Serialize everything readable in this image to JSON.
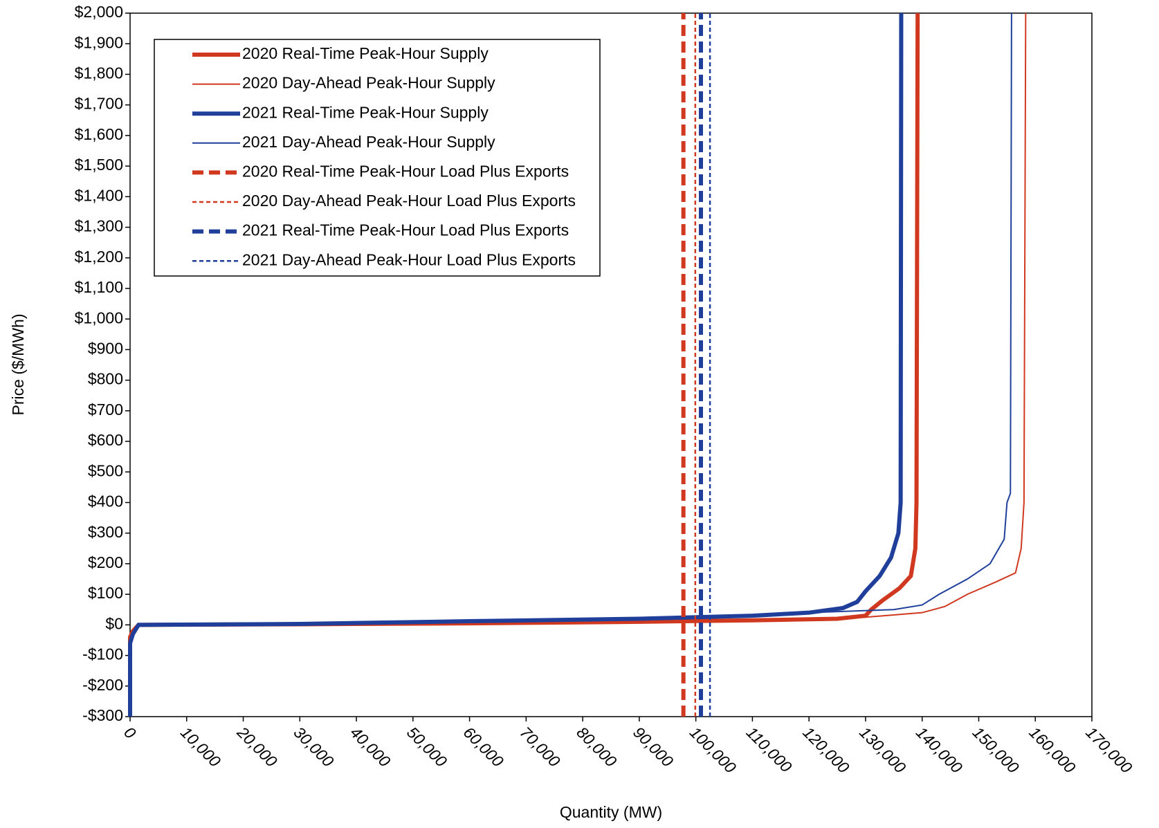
{
  "chart_data": {
    "type": "line",
    "xlabel": "Quantity (MW)",
    "ylabel": "Price ($/MWh)",
    "xlim": [
      0,
      170000
    ],
    "ylim": [
      -300,
      2000
    ],
    "xticks": [
      0,
      {
        "value": 10000,
        "label": "10,000"
      },
      {
        "value": 20000,
        "label": "20,000"
      },
      {
        "value": 30000,
        "label": "30,000"
      },
      {
        "value": 40000,
        "label": "40,000"
      },
      {
        "value": 50000,
        "label": "50,000"
      },
      {
        "value": 60000,
        "label": "60,000"
      },
      {
        "value": 70000,
        "label": "70,000"
      },
      {
        "value": 80000,
        "label": "80,000"
      },
      {
        "value": 90000,
        "label": "90,000"
      },
      {
        "value": 100000,
        "label": "100,000"
      },
      {
        "value": 110000,
        "label": "110,000"
      },
      {
        "value": 120000,
        "label": "120,000"
      },
      {
        "value": 130000,
        "label": "130,000"
      },
      {
        "value": 140000,
        "label": "140,000"
      },
      {
        "value": 150000,
        "label": "150,000"
      },
      {
        "value": 160000,
        "label": "160,000"
      },
      {
        "value": 170000,
        "label": "170,000"
      }
    ],
    "yticks": [
      {
        "value": -300,
        "label": "-$300"
      },
      {
        "value": -200,
        "label": "-$200"
      },
      {
        "value": -100,
        "label": "-$100"
      },
      {
        "value": 0,
        "label": "$0"
      },
      {
        "value": 100,
        "label": "$100"
      },
      {
        "value": 200,
        "label": "$200"
      },
      {
        "value": 300,
        "label": "$300"
      },
      {
        "value": 400,
        "label": "$400"
      },
      {
        "value": 500,
        "label": "$500"
      },
      {
        "value": 600,
        "label": "$600"
      },
      {
        "value": 700,
        "label": "$700"
      },
      {
        "value": 800,
        "label": "$800"
      },
      {
        "value": 900,
        "label": "$900"
      },
      {
        "value": 1000,
        "label": "$1,000"
      },
      {
        "value": 1100,
        "label": "$1,100"
      },
      {
        "value": 1200,
        "label": "$1,200"
      },
      {
        "value": 1300,
        "label": "$1,300"
      },
      {
        "value": 1400,
        "label": "$1,400"
      },
      {
        "value": 1500,
        "label": "$1,500"
      },
      {
        "value": 1600,
        "label": "$1,600"
      },
      {
        "value": 1700,
        "label": "$1,700"
      },
      {
        "value": 1800,
        "label": "$1,800"
      },
      {
        "value": 1900,
        "label": "$1,900"
      },
      {
        "value": 2000,
        "label": "$2,000"
      }
    ],
    "grid": false,
    "legend": "upper-left",
    "series": [
      {
        "name": "2020 Real-Time Peak-Hour Supply",
        "color": "#d0391f",
        "width": 6,
        "dash": "solid",
        "x": [
          0,
          0,
          500,
          1500,
          30000,
          60000,
          90000,
          110000,
          125000,
          130000,
          131000,
          133000,
          136000,
          138000,
          138800,
          139000,
          139200
        ],
        "values": [
          -300,
          -40,
          -20,
          0,
          2,
          5,
          10,
          15,
          20,
          30,
          50,
          80,
          120,
          160,
          250,
          400,
          2000
        ]
      },
      {
        "name": "2020 Day-Ahead Peak-Hour Supply",
        "color": "#d0391f",
        "width": 2,
        "dash": "solid",
        "x": [
          0,
          0,
          1500,
          60000,
          100000,
          130000,
          140000,
          144000,
          148000,
          153000,
          156500,
          157500,
          158000,
          158300
        ],
        "values": [
          -300,
          -40,
          0,
          5,
          12,
          25,
          40,
          60,
          100,
          140,
          170,
          250,
          400,
          2000
        ]
      },
      {
        "name": "2021 Real-Time Peak-Hour Supply",
        "color": "#1f3f9a",
        "width": 6,
        "dash": "solid",
        "x": [
          0,
          0,
          500,
          1500,
          30000,
          60000,
          90000,
          110000,
          120000,
          126000,
          128500,
          130000,
          132500,
          134500,
          135800,
          136200,
          136300
        ],
        "values": [
          -300,
          -60,
          -30,
          0,
          3,
          12,
          20,
          30,
          40,
          55,
          75,
          110,
          160,
          220,
          300,
          400,
          2000
        ]
      },
      {
        "name": "2021 Day-Ahead Peak-Hour Supply",
        "color": "#1f3f9a",
        "width": 2,
        "dash": "solid",
        "x": [
          0,
          0,
          1500,
          60000,
          100000,
          120000,
          135000,
          140000,
          143000,
          148000,
          152000,
          154500,
          155000,
          155600,
          155800
        ],
        "values": [
          -300,
          -50,
          0,
          8,
          22,
          40,
          50,
          65,
          100,
          150,
          200,
          280,
          400,
          430,
          2000
        ]
      },
      {
        "name": "2020 Real-Time Peak-Hour Load Plus Exports",
        "color": "#d0391f",
        "width": 6,
        "dash": "dashed",
        "x": [
          97800,
          97800
        ],
        "values": [
          -300,
          2000
        ]
      },
      {
        "name": "2020 Day-Ahead Peak-Hour Load Plus Exports",
        "color": "#d0391f",
        "width": 2.5,
        "dash": "dashed",
        "x": [
          99900,
          99900
        ],
        "values": [
          -300,
          2000
        ]
      },
      {
        "name": "2021 Real-Time Peak-Hour Load Plus Exports",
        "color": "#1f3f9a",
        "width": 6,
        "dash": "dashed",
        "x": [
          100900,
          100900
        ],
        "values": [
          -300,
          2000
        ]
      },
      {
        "name": "2021 Day-Ahead Peak-Hour Load Plus Exports",
        "color": "#1f3f9a",
        "width": 2.5,
        "dash": "dashed",
        "x": [
          102500,
          102500
        ],
        "values": [
          -300,
          2000
        ]
      }
    ]
  }
}
